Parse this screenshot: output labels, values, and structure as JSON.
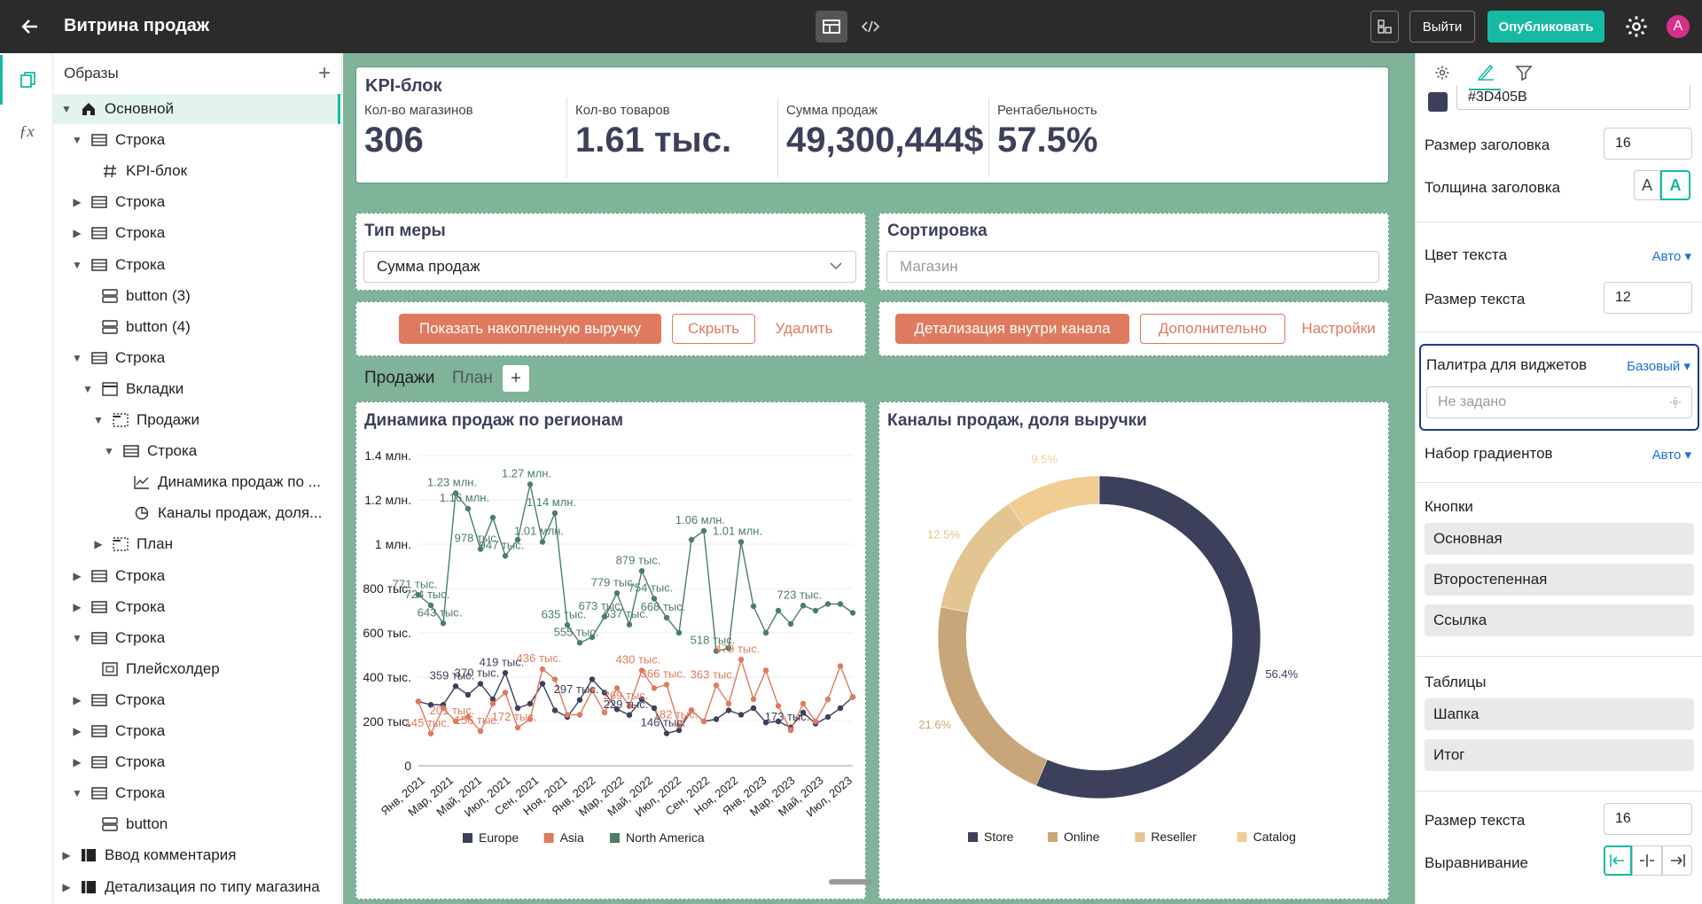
{
  "app": {
    "title": "Витрина продаж",
    "exit_label": "Выйти",
    "publish_label": "Опубликовать",
    "avatar": "A",
    "accent": "#16b9a4"
  },
  "tree": {
    "header": "Образы",
    "items": [
      {
        "label": "Основной",
        "icon": "home-icon",
        "chev": "down",
        "indent": 0,
        "selected": true
      },
      {
        "label": "Строка",
        "icon": "row-icon",
        "chev": "down",
        "indent": 1
      },
      {
        "label": "KPI-блок",
        "icon": "hash-icon",
        "chev": "",
        "indent": 2
      },
      {
        "label": "Строка",
        "icon": "row-icon",
        "chev": "right",
        "indent": 1
      },
      {
        "label": "Строка",
        "icon": "row-icon",
        "chev": "right",
        "indent": 1
      },
      {
        "label": "Строка",
        "icon": "row-icon",
        "chev": "down",
        "indent": 1
      },
      {
        "label": "button (3)",
        "icon": "button-icon",
        "chev": "",
        "indent": 2
      },
      {
        "label": "button (4)",
        "icon": "button-icon",
        "chev": "",
        "indent": 2
      },
      {
        "label": "Строка",
        "icon": "row-icon",
        "chev": "down",
        "indent": 1
      },
      {
        "label": "Вкладки",
        "icon": "tabs-icon",
        "chev": "down",
        "indent": 2
      },
      {
        "label": "Продажи",
        "icon": "tab-icon",
        "chev": "down",
        "indent": 3
      },
      {
        "label": "Строка",
        "icon": "row-icon",
        "chev": "down",
        "indent": 4
      },
      {
        "label": "Динамика продаж по ...",
        "icon": "line-chart-icon",
        "chev": "",
        "indent": 5
      },
      {
        "label": "Каналы продаж, доля...",
        "icon": "pie-chart-icon",
        "chev": "",
        "indent": 5
      },
      {
        "label": "План",
        "icon": "tab-icon",
        "chev": "right",
        "indent": 3
      },
      {
        "label": "Строка",
        "icon": "row-icon",
        "chev": "right",
        "indent": 1
      },
      {
        "label": "Строка",
        "icon": "row-icon",
        "chev": "right",
        "indent": 1
      },
      {
        "label": "Строка",
        "icon": "row-icon",
        "chev": "down",
        "indent": 1
      },
      {
        "label": "Плейсхолдер",
        "icon": "placeholder-icon",
        "chev": "",
        "indent": 2
      },
      {
        "label": "Строка",
        "icon": "row-icon",
        "chev": "right",
        "indent": 1
      },
      {
        "label": "Строка",
        "icon": "row-icon",
        "chev": "right",
        "indent": 1
      },
      {
        "label": "Строка",
        "icon": "row-icon",
        "chev": "right",
        "indent": 1
      },
      {
        "label": "Строка",
        "icon": "row-icon",
        "chev": "down",
        "indent": 1
      },
      {
        "label": "button",
        "icon": "button-icon",
        "chev": "",
        "indent": 2
      },
      {
        "label": "Ввод комментария",
        "icon": "block-icon",
        "chev": "right",
        "indent": 0
      },
      {
        "label": "Детализация по типу магазина",
        "icon": "block-icon",
        "chev": "right",
        "indent": 0
      }
    ]
  },
  "kpi": {
    "title": "KPI-блок",
    "items": [
      {
        "label": "Кол-во магазинов",
        "value": "306"
      },
      {
        "label": "Кол-во товаров",
        "value": "1.61 тыс."
      },
      {
        "label": "Сумма продаж",
        "value": "49,300,444$"
      },
      {
        "label": "Рентабельность",
        "value": "57.5%"
      }
    ]
  },
  "filters": {
    "measure_title": "Тип меры",
    "measure_value": "Сумма продаж",
    "sort_title": "Сортировка",
    "sort_placeholder": "Магазин"
  },
  "buttons_left": {
    "primary": "Показать накопленную выручку",
    "secondary": "Скрыть",
    "link": "Удалить"
  },
  "buttons_right": {
    "primary": "Детализация внутри канала",
    "secondary": "Дополнительно",
    "link": "Настройки"
  },
  "tabs": [
    "Продажи",
    "План"
  ],
  "line_title": "Динамика продаж по регионам",
  "donut_title": "Каналы продаж, доля выручки",
  "chart_data": [
    {
      "type": "line",
      "title": "Динамика продаж по регионам",
      "y_ticks": [
        "0",
        "200 тыс.",
        "400 тыс.",
        "600 тыс.",
        "800 тыс.",
        "1 млн.",
        "1.2 млн.",
        "1.4 млн."
      ],
      "ylim": [
        0,
        1400000
      ],
      "x_ticks": [
        "Янв, 2021",
        "Мар, 2021",
        "Май, 2021",
        "Июл, 2021",
        "Сен, 2021",
        "Ноя, 2021",
        "Янв, 2022",
        "Мар, 2022",
        "Май, 2022",
        "Июл, 2022",
        "Сен, 2022",
        "Ноя, 2022",
        "Янв, 2023",
        "Мар, 2023",
        "Май, 2023",
        "Июл, 2023"
      ],
      "series": [
        {
          "name": "Europe",
          "color": "#3D405B",
          "values": [
            290000,
            275000,
            275000,
            359000,
            320000,
            370000,
            300000,
            419000,
            260000,
            280000,
            370000,
            250000,
            220000,
            297000,
            390000,
            330000,
            255000,
            229000,
            300000,
            260000,
            146000,
            160000,
            250000,
            200000,
            210000,
            250000,
            230000,
            260000,
            195000,
            200000,
            173000,
            240000,
            190000,
            220000,
            260000,
            310000
          ]
        },
        {
          "name": "Asia",
          "color": "#E07A5F",
          "values": [
            290000,
            145000,
            260000,
            201000,
            220000,
            156000,
            280000,
            330000,
            172000,
            210000,
            436000,
            390000,
            230000,
            230000,
            340000,
            240000,
            350000,
            269000,
            430000,
            350000,
            366000,
            182000,
            250000,
            200000,
            363000,
            280000,
            479000,
            300000,
            430000,
            270000,
            160000,
            280000,
            200000,
            300000,
            450000,
            310000
          ]
        },
        {
          "name": "North America",
          "color": "#4c7e66",
          "values": [
            771000,
            724000,
            643000,
            1230000,
            1160000,
            978000,
            1120000,
            947000,
            1020000,
            1270000,
            1010000,
            1140000,
            635000,
            555000,
            580000,
            673000,
            779000,
            637000,
            879000,
            754000,
            668000,
            600000,
            1020000,
            1060000,
            518000,
            530000,
            1010000,
            720000,
            600000,
            700000,
            640000,
            723000,
            700000,
            730000,
            730000,
            690000
          ]
        }
      ],
      "data_labels": [
        {
          "text": "1.23 млн.",
          "series": "North America"
        },
        {
          "text": "1.27 млн.",
          "series": "North America"
        },
        {
          "text": "1.16 млн.",
          "series": "North America"
        },
        {
          "text": "1.14 млн.",
          "series": "North America"
        },
        {
          "text": "978 тыс.",
          "series": "North America"
        },
        {
          "text": "1.01 млн.",
          "series": "North America"
        },
        {
          "text": "1.01 млн.",
          "series": "North America"
        },
        {
          "text": "1.06 млн.",
          "series": "North America"
        },
        {
          "text": "947 тыс.",
          "series": "North America"
        },
        {
          "text": "879 тыс.",
          "series": "North America"
        },
        {
          "text": "771 тыс.",
          "series": "North America"
        },
        {
          "text": "779 тыс.",
          "series": "North America"
        },
        {
          "text": "724 тыс.",
          "series": "North America"
        },
        {
          "text": "754 тыс.",
          "series": "North America"
        },
        {
          "text": "673 тыс.",
          "series": "North America"
        },
        {
          "text": "723 тыс.",
          "series": "North America"
        },
        {
          "text": "635 тыс.",
          "series": "North America"
        },
        {
          "text": "668 тыс.",
          "series": "North America"
        },
        {
          "text": "643 тыс.",
          "series": "North America"
        },
        {
          "text": "637 тыс.",
          "series": "North America"
        },
        {
          "text": "555 тыс.",
          "series": "North America"
        },
        {
          "text": "518 тыс.",
          "series": "North America"
        },
        {
          "text": "419 тыс.",
          "series": "Europe"
        },
        {
          "text": "359 тыс.",
          "series": "Europe"
        },
        {
          "text": "370 тыс.",
          "series": "Europe"
        },
        {
          "text": "297 тыс.",
          "series": "Europe"
        },
        {
          "text": "229 тыс.",
          "series": "Europe"
        },
        {
          "text": "146 тыс.",
          "series": "Europe"
        },
        {
          "text": "173 тыс.",
          "series": "Europe"
        },
        {
          "text": "436 тыс.",
          "series": "Asia"
        },
        {
          "text": "430 тыс.",
          "series": "Asia"
        },
        {
          "text": "479 тыс.",
          "series": "Asia"
        },
        {
          "text": "366 тыс.",
          "series": "Asia"
        },
        {
          "text": "363 тыс.",
          "series": "Asia"
        },
        {
          "text": "269 тыс.",
          "series": "Asia"
        },
        {
          "text": "201 тыс.",
          "series": "Asia"
        },
        {
          "text": "145 тыс.",
          "series": "Asia"
        },
        {
          "text": "156 тыс.",
          "series": "Asia"
        },
        {
          "text": "172 тыс.",
          "series": "Asia"
        },
        {
          "text": "182 тыс.",
          "series": "Asia"
        }
      ],
      "legend": "bottom"
    },
    {
      "type": "pie",
      "title": "Каналы продаж, доля выручки",
      "slices": [
        {
          "name": "Store",
          "value": 56.4,
          "label": "56.4%",
          "color": "#3D405B"
        },
        {
          "name": "Online",
          "value": 21.6,
          "label": "21.6%",
          "color": "#c8a67a"
        },
        {
          "name": "Reseller",
          "value": 12.5,
          "label": "12.5%",
          "color": "#e2c591"
        },
        {
          "name": "Catalog",
          "value": 9.5,
          "label": "9.5%",
          "color": "#f0cd92"
        }
      ],
      "legend": "bottom"
    }
  ],
  "right_panel": {
    "color_hex": "#3D405B",
    "header_size_label": "Размер заголовка",
    "header_size": "16",
    "header_weight_label": "Толщина заголовка",
    "weight_a": "A",
    "weight_a_bold": "A",
    "text_color_label": "Цвет текста",
    "text_color_value": "Авто",
    "text_size_label": "Размер текста",
    "text_size": "12",
    "palette_label": "Палитра для виджетов",
    "palette_value": "Базовый",
    "palette_placeholder": "Не задано",
    "gradient_label": "Набор градиентов",
    "gradient_value": "Авто",
    "buttons_title": "Кнопки",
    "btn_main": "Основная",
    "btn_second": "Второстепенная",
    "btn_link": "Ссылка",
    "tables_title": "Таблицы",
    "tbl_head": "Шапка",
    "tbl_total": "Итог",
    "text_size2_label": "Размер текста",
    "text_size2": "16",
    "align_label": "Выравнивание"
  }
}
